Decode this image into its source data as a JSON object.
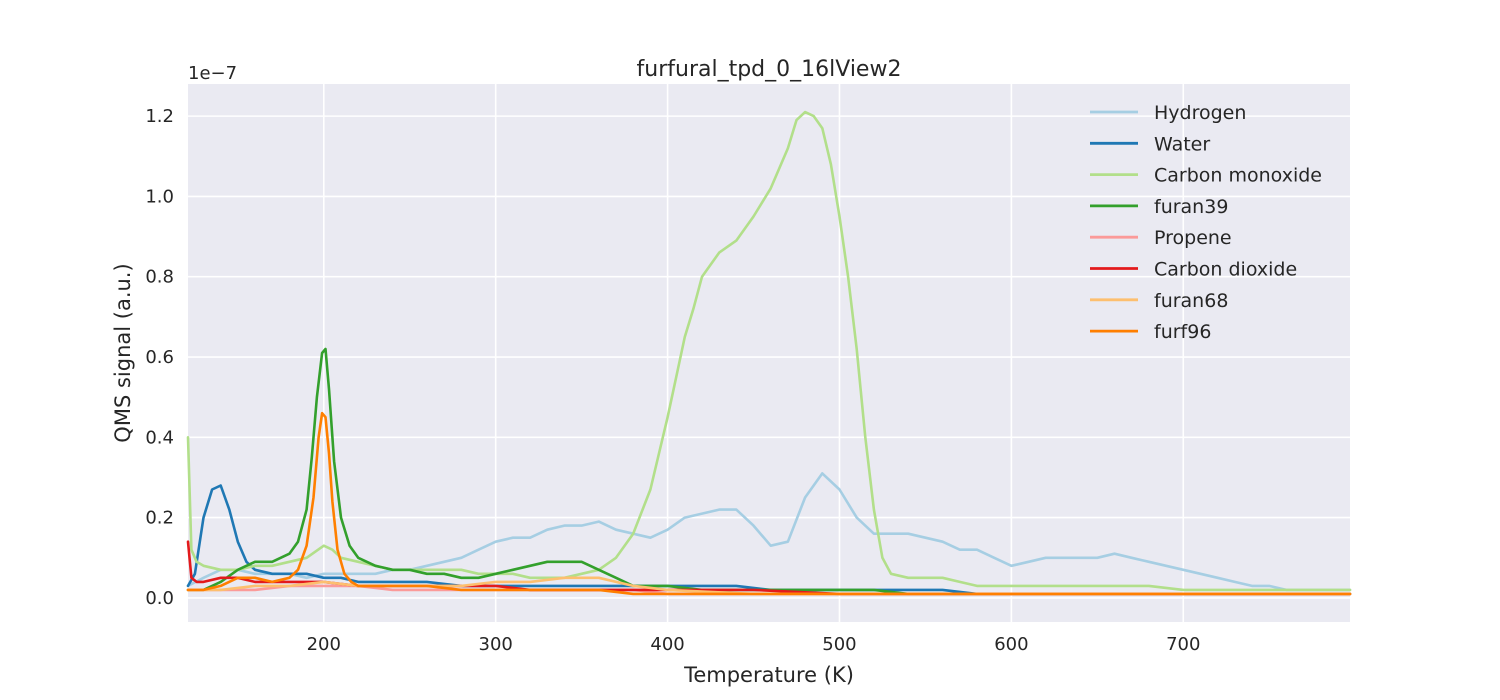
{
  "chart_data": {
    "type": "line",
    "title": "furfural_tpd_0_16lView2",
    "xlabel": "Temperature (K)",
    "ylabel": "QMS signal (a.u.)",
    "y_offset_label": "1e−7",
    "xlim": [
      121,
      797
    ],
    "ylim": [
      -0.06,
      1.28
    ],
    "x_ticks": [
      200,
      300,
      400,
      500,
      600,
      700
    ],
    "x_tick_labels": [
      "200",
      "300",
      "400",
      "500",
      "600",
      "700"
    ],
    "y_ticks": [
      0.0,
      0.2,
      0.4,
      0.6,
      0.8,
      1.0,
      1.2
    ],
    "y_tick_labels": [
      "0.0",
      "0.2",
      "0.4",
      "0.6",
      "0.8",
      "1.0",
      "1.2"
    ],
    "grid": true,
    "legend_position": "top-right",
    "series": [
      {
        "name": "Hydrogen",
        "color": "#a6cee3",
        "x": [
          121,
          130,
          140,
          150,
          160,
          170,
          180,
          190,
          200,
          210,
          220,
          230,
          240,
          250,
          260,
          270,
          280,
          290,
          300,
          310,
          320,
          330,
          340,
          350,
          360,
          370,
          380,
          390,
          400,
          410,
          420,
          430,
          440,
          450,
          460,
          470,
          480,
          490,
          500,
          510,
          520,
          530,
          540,
          550,
          560,
          570,
          580,
          590,
          600,
          610,
          620,
          630,
          640,
          650,
          660,
          670,
          680,
          690,
          700,
          710,
          720,
          730,
          740,
          750,
          760,
          770,
          780,
          797
        ],
        "y": [
          0.03,
          0.05,
          0.07,
          0.07,
          0.06,
          0.06,
          0.06,
          0.05,
          0.06,
          0.06,
          0.06,
          0.06,
          0.07,
          0.07,
          0.08,
          0.09,
          0.1,
          0.12,
          0.14,
          0.15,
          0.15,
          0.17,
          0.18,
          0.18,
          0.19,
          0.17,
          0.16,
          0.15,
          0.17,
          0.2,
          0.21,
          0.22,
          0.22,
          0.18,
          0.13,
          0.14,
          0.25,
          0.31,
          0.27,
          0.2,
          0.16,
          0.16,
          0.16,
          0.15,
          0.14,
          0.12,
          0.12,
          0.1,
          0.08,
          0.09,
          0.1,
          0.1,
          0.1,
          0.1,
          0.11,
          0.1,
          0.09,
          0.08,
          0.07,
          0.06,
          0.05,
          0.04,
          0.03,
          0.03,
          0.02,
          0.02,
          0.02,
          0.02
        ]
      },
      {
        "name": "Water",
        "color": "#1f78b4",
        "x": [
          121,
          125,
          130,
          135,
          140,
          145,
          150,
          155,
          160,
          170,
          180,
          190,
          200,
          210,
          220,
          240,
          260,
          280,
          300,
          320,
          340,
          360,
          380,
          400,
          420,
          440,
          460,
          480,
          500,
          520,
          540,
          560,
          580,
          600,
          620,
          640,
          660,
          680,
          700,
          720,
          740,
          760,
          780,
          797
        ],
        "y": [
          0.03,
          0.06,
          0.2,
          0.27,
          0.28,
          0.22,
          0.14,
          0.09,
          0.07,
          0.06,
          0.06,
          0.06,
          0.05,
          0.05,
          0.04,
          0.04,
          0.04,
          0.03,
          0.03,
          0.03,
          0.03,
          0.03,
          0.03,
          0.03,
          0.03,
          0.03,
          0.02,
          0.02,
          0.02,
          0.02,
          0.02,
          0.02,
          0.01,
          0.01,
          0.01,
          0.01,
          0.01,
          0.01,
          0.01,
          0.01,
          0.01,
          0.01,
          0.01,
          0.01
        ]
      },
      {
        "name": "Carbon monoxide",
        "color": "#b2df8a",
        "x": [
          121,
          123,
          126,
          130,
          140,
          150,
          160,
          170,
          180,
          190,
          200,
          205,
          210,
          220,
          230,
          240,
          250,
          260,
          270,
          280,
          290,
          300,
          310,
          320,
          330,
          340,
          350,
          360,
          370,
          380,
          390,
          400,
          405,
          410,
          415,
          420,
          430,
          440,
          450,
          460,
          470,
          475,
          480,
          485,
          490,
          495,
          500,
          505,
          510,
          515,
          520,
          525,
          530,
          540,
          550,
          560,
          570,
          580,
          590,
          600,
          620,
          640,
          660,
          680,
          700,
          720,
          740,
          760,
          780,
          797
        ],
        "y": [
          0.4,
          0.12,
          0.09,
          0.08,
          0.07,
          0.07,
          0.08,
          0.08,
          0.09,
          0.1,
          0.13,
          0.12,
          0.1,
          0.09,
          0.08,
          0.07,
          0.07,
          0.07,
          0.07,
          0.07,
          0.06,
          0.06,
          0.06,
          0.05,
          0.05,
          0.05,
          0.06,
          0.07,
          0.1,
          0.16,
          0.27,
          0.45,
          0.55,
          0.65,
          0.72,
          0.8,
          0.86,
          0.89,
          0.95,
          1.02,
          1.12,
          1.19,
          1.21,
          1.2,
          1.17,
          1.08,
          0.95,
          0.8,
          0.62,
          0.4,
          0.22,
          0.1,
          0.06,
          0.05,
          0.05,
          0.05,
          0.04,
          0.03,
          0.03,
          0.03,
          0.03,
          0.03,
          0.03,
          0.03,
          0.02,
          0.02,
          0.02,
          0.02,
          0.02,
          0.02
        ]
      },
      {
        "name": "furan39",
        "color": "#33a02c",
        "x": [
          121,
          130,
          140,
          150,
          160,
          170,
          180,
          185,
          190,
          193,
          196,
          199,
          201,
          203,
          206,
          210,
          215,
          220,
          230,
          240,
          250,
          260,
          270,
          280,
          290,
          300,
          310,
          320,
          330,
          340,
          350,
          360,
          370,
          380,
          400,
          420,
          440,
          460,
          480,
          500,
          520,
          540,
          560,
          580,
          600,
          620,
          640,
          660,
          680,
          700,
          720,
          740,
          760,
          780,
          797
        ],
        "y": [
          0.02,
          0.02,
          0.04,
          0.07,
          0.09,
          0.09,
          0.11,
          0.14,
          0.22,
          0.35,
          0.5,
          0.61,
          0.62,
          0.52,
          0.34,
          0.2,
          0.13,
          0.1,
          0.08,
          0.07,
          0.07,
          0.06,
          0.06,
          0.05,
          0.05,
          0.06,
          0.07,
          0.08,
          0.09,
          0.09,
          0.09,
          0.07,
          0.05,
          0.03,
          0.03,
          0.02,
          0.02,
          0.02,
          0.02,
          0.02,
          0.02,
          0.01,
          0.01,
          0.01,
          0.01,
          0.01,
          0.01,
          0.01,
          0.01,
          0.01,
          0.01,
          0.01,
          0.01,
          0.01,
          0.01
        ]
      },
      {
        "name": "Propene",
        "color": "#fb9a99",
        "x": [
          121,
          140,
          160,
          180,
          200,
          220,
          240,
          260,
          280,
          300,
          320,
          340,
          360,
          380,
          400,
          450,
          500,
          550,
          600,
          650,
          700,
          750,
          797
        ],
        "y": [
          0.02,
          0.02,
          0.02,
          0.03,
          0.03,
          0.03,
          0.02,
          0.02,
          0.02,
          0.02,
          0.02,
          0.02,
          0.02,
          0.02,
          0.01,
          0.01,
          0.01,
          0.01,
          0.01,
          0.01,
          0.01,
          0.01,
          0.01
        ]
      },
      {
        "name": "Carbon dioxide",
        "color": "#e31a1c",
        "x": [
          121,
          123,
          126,
          130,
          140,
          150,
          160,
          170,
          180,
          190,
          200,
          220,
          240,
          260,
          280,
          300,
          320,
          340,
          360,
          380,
          400,
          450,
          500,
          550,
          600,
          650,
          700,
          750,
          797
        ],
        "y": [
          0.14,
          0.05,
          0.04,
          0.04,
          0.05,
          0.05,
          0.04,
          0.04,
          0.04,
          0.04,
          0.04,
          0.03,
          0.03,
          0.03,
          0.03,
          0.03,
          0.02,
          0.02,
          0.02,
          0.02,
          0.02,
          0.02,
          0.01,
          0.01,
          0.01,
          0.01,
          0.01,
          0.01,
          0.01
        ]
      },
      {
        "name": "furan68",
        "color": "#fdbf6f",
        "x": [
          121,
          140,
          160,
          180,
          200,
          220,
          240,
          260,
          280,
          300,
          320,
          340,
          360,
          380,
          400,
          450,
          500,
          550,
          600,
          650,
          700,
          750,
          797
        ],
        "y": [
          0.02,
          0.02,
          0.03,
          0.03,
          0.04,
          0.03,
          0.03,
          0.03,
          0.03,
          0.04,
          0.04,
          0.05,
          0.05,
          0.03,
          0.02,
          0.01,
          0.01,
          0.01,
          0.01,
          0.01,
          0.01,
          0.01,
          0.01
        ]
      },
      {
        "name": "furf96",
        "color": "#ff7f00",
        "x": [
          121,
          130,
          140,
          150,
          160,
          170,
          180,
          185,
          190,
          194,
          197,
          199,
          201,
          203,
          205,
          208,
          212,
          216,
          220,
          230,
          240,
          260,
          280,
          300,
          320,
          340,
          360,
          380,
          400,
          450,
          500,
          550,
          600,
          650,
          700,
          750,
          797
        ],
        "y": [
          0.02,
          0.02,
          0.03,
          0.05,
          0.05,
          0.04,
          0.05,
          0.07,
          0.13,
          0.25,
          0.4,
          0.46,
          0.45,
          0.36,
          0.24,
          0.12,
          0.06,
          0.04,
          0.03,
          0.03,
          0.03,
          0.03,
          0.02,
          0.02,
          0.02,
          0.02,
          0.02,
          0.01,
          0.01,
          0.01,
          0.01,
          0.01,
          0.01,
          0.01,
          0.01,
          0.01,
          0.01
        ]
      }
    ]
  }
}
